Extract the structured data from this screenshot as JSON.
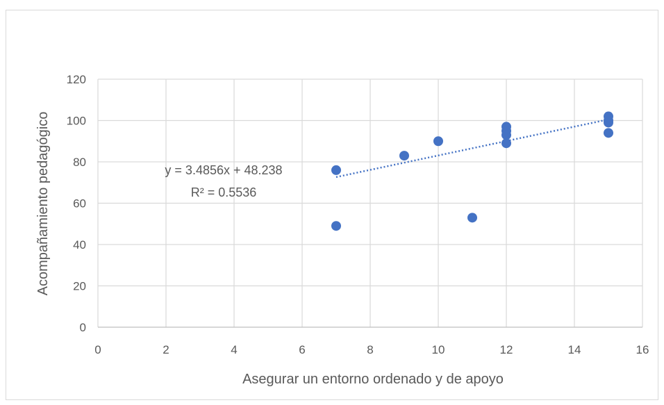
{
  "chart_data": {
    "type": "scatter",
    "xlabel": "Asegurar un entorno ordenado y de apoyo",
    "ylabel": "Acompañamiento pedagógico",
    "xlim": [
      0,
      16
    ],
    "ylim": [
      0,
      120
    ],
    "x_ticks": [
      0,
      2,
      4,
      6,
      8,
      10,
      12,
      14,
      16
    ],
    "y_ticks": [
      0,
      20,
      40,
      60,
      80,
      100,
      120
    ],
    "grid": true,
    "marker_color": "#4472c4",
    "trendline_color": "#4472c4",
    "points": [
      {
        "x": 7,
        "y": 76
      },
      {
        "x": 7,
        "y": 49
      },
      {
        "x": 9,
        "y": 83
      },
      {
        "x": 10,
        "y": 90
      },
      {
        "x": 11,
        "y": 53
      },
      {
        "x": 12,
        "y": 97
      },
      {
        "x": 12,
        "y": 95
      },
      {
        "x": 12,
        "y": 93
      },
      {
        "x": 12,
        "y": 89
      },
      {
        "x": 15,
        "y": 102
      },
      {
        "x": 15,
        "y": 100
      },
      {
        "x": 15,
        "y": 99
      },
      {
        "x": 15,
        "y": 94
      }
    ],
    "trendline": {
      "type": "linear",
      "slope": 3.4856,
      "intercept": 48.238,
      "x_range": [
        7,
        15
      ],
      "equation": "y = 3.4856x + 48.238",
      "r_squared": "R² = 0.5536"
    }
  }
}
